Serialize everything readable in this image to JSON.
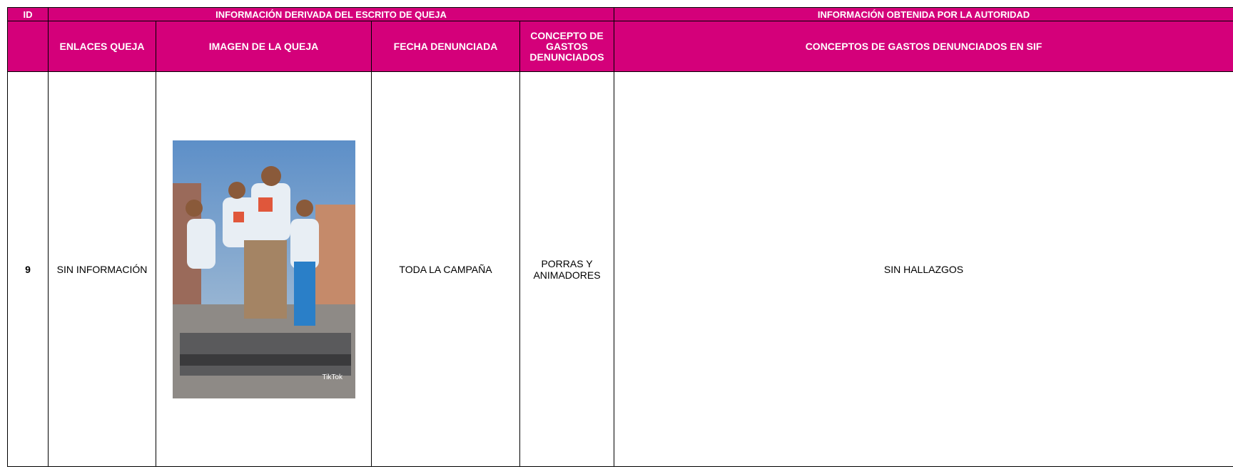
{
  "table": {
    "group_headers": [
      "ID",
      "INFORMACIÓN DERIVADA DEL ESCRITO DE QUEJA",
      "INFORMACIÓN OBTENIDA POR LA AUTORIDAD"
    ],
    "columns": [
      "ENLACES QUEJA",
      "IMAGEN DE LA QUEJA",
      "FECHA DENUNCIADA",
      "CONCEPTO DE GASTOS DENUNCIADOS",
      "CONCEPTOS DE GASTOS DENUNCIADOS EN SIF"
    ],
    "rows": [
      [
        "9",
        "SIN INFORMACIÓN",
        "TODA LA CAMPAÑA",
        "PORRAS Y ANIMADORES",
        "SIN HALLAZGOS"
      ]
    ],
    "image_caption": "TikTok"
  }
}
